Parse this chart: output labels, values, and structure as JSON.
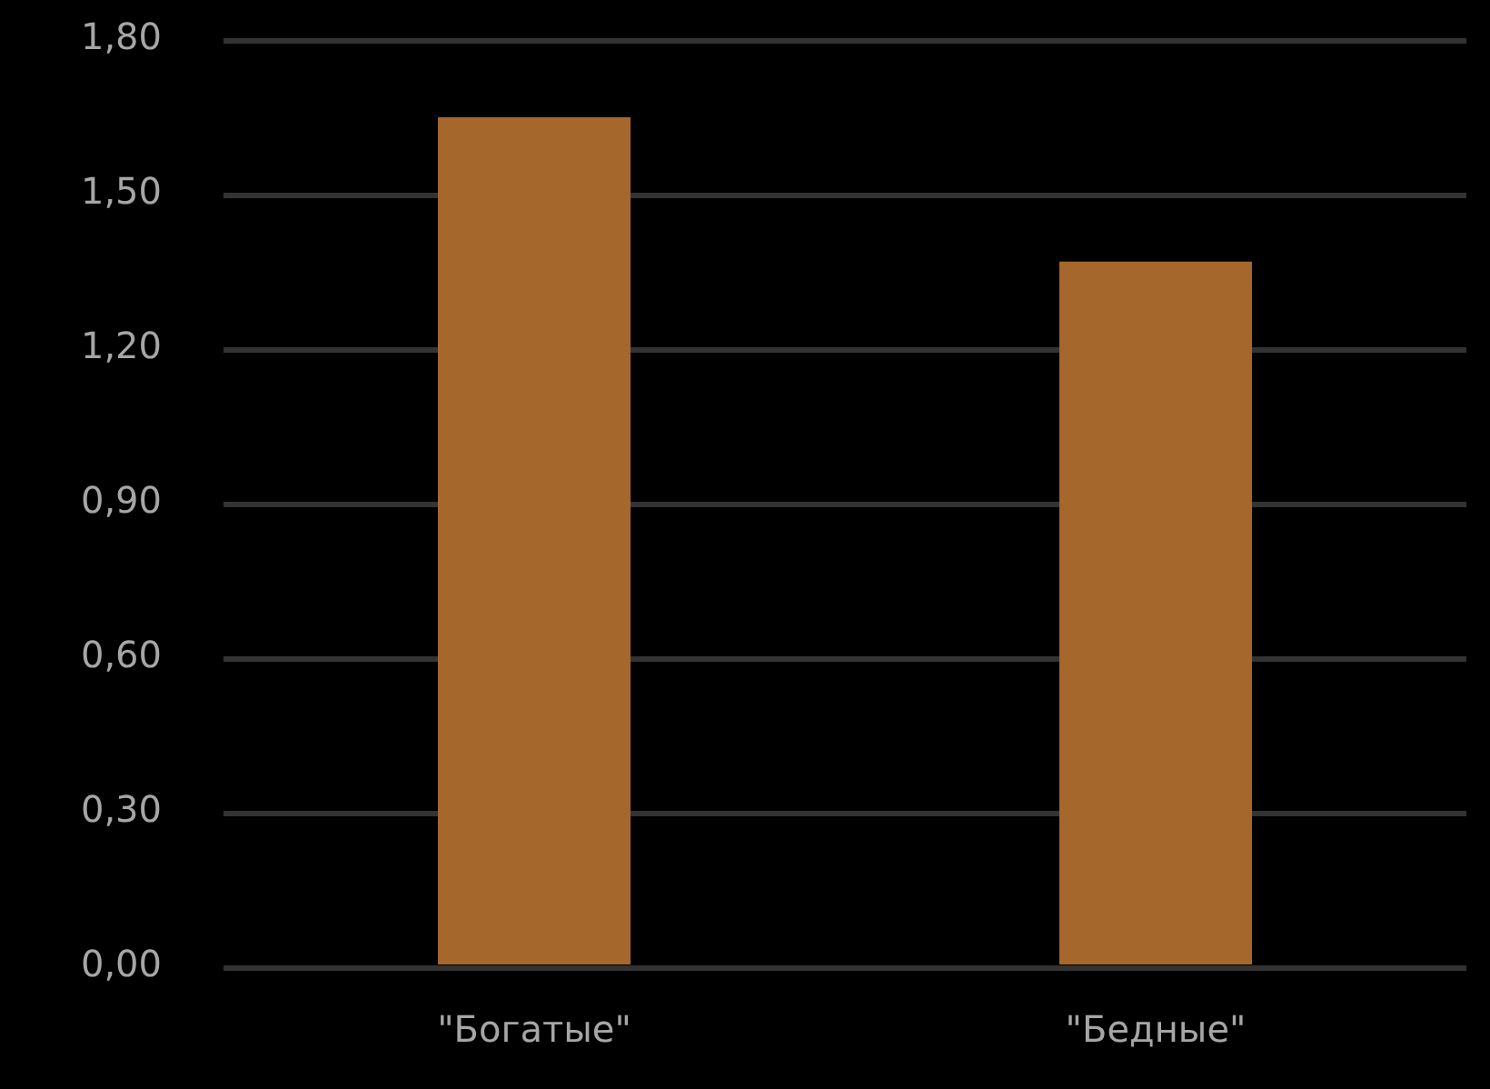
{
  "chart_data": {
    "type": "bar",
    "categories": [
      "\"Богатые\"",
      "\"Бедные\""
    ],
    "values": [
      1.65,
      1.37
    ],
    "color": "#a5672c",
    "ylim": [
      0,
      1.8
    ],
    "yticks": [
      {
        "value": 0,
        "label": "0,00"
      },
      {
        "value": 0.3,
        "label": "0,30"
      },
      {
        "value": 0.6,
        "label": "0,60"
      },
      {
        "value": 0.9,
        "label": "0,90"
      },
      {
        "value": 1.2,
        "label": "1,20"
      },
      {
        "value": 1.5,
        "label": "1,50"
      },
      {
        "value": 1.8,
        "label": "1,80"
      }
    ],
    "grid": "y"
  }
}
